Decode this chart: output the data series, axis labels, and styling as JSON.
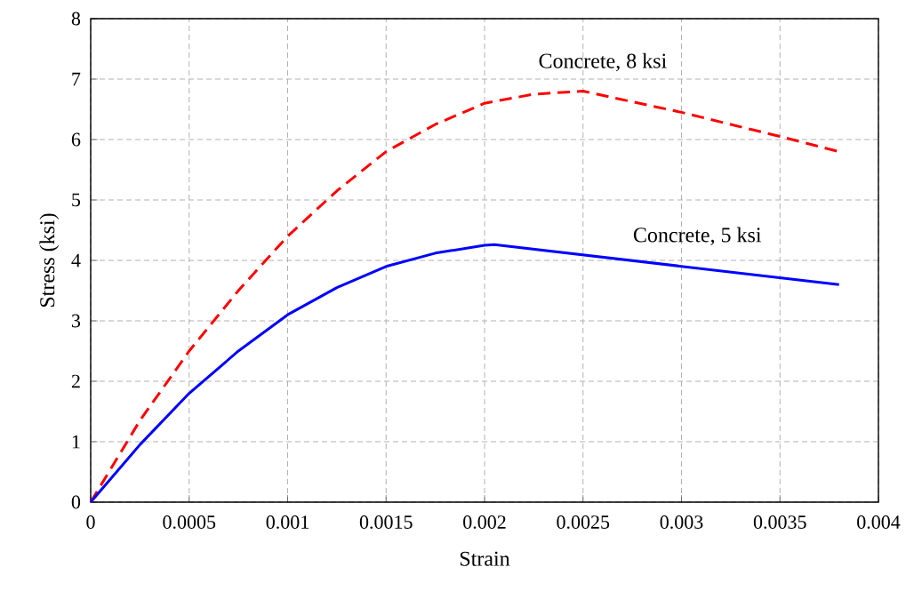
{
  "chart_data": {
    "type": "line",
    "xlabel": "Strain",
    "ylabel": "Stress (ksi)",
    "xlim": [
      0,
      0.004
    ],
    "xticks": [
      0,
      0.0005,
      0.001,
      0.0015,
      0.002,
      0.0025,
      0.003,
      0.0035,
      0.004
    ],
    "ylim": [
      0,
      8
    ],
    "yticks": [
      0,
      1,
      2,
      3,
      4,
      5,
      6,
      7,
      8
    ],
    "grid": true,
    "marker": "none",
    "series": [
      {
        "color": "#ff0000",
        "line_style": "dashed",
        "x": [
          0,
          0.00025,
          0.0005,
          0.00075,
          0.001,
          0.00125,
          0.0015,
          0.00175,
          0.002,
          0.00225,
          0.0025,
          0.003,
          0.0035,
          0.0038
        ],
        "values": [
          0,
          1.35,
          2.5,
          3.5,
          4.4,
          5.15,
          5.8,
          6.25,
          6.6,
          6.75,
          6.8,
          6.45,
          6.05,
          5.8
        ]
      },
      {
        "color": "#0000ff",
        "line_style": "solid",
        "x": [
          0,
          0.00025,
          0.0005,
          0.00075,
          0.001,
          0.00125,
          0.0015,
          0.00175,
          0.002,
          0.00205,
          0.0038
        ],
        "values": [
          0,
          0.95,
          1.8,
          2.5,
          3.1,
          3.55,
          3.9,
          4.12,
          4.25,
          4.26,
          3.6
        ]
      }
    ],
    "annotations": [
      "Concrete, 8 ksi",
      "Concrete, 5 ksi"
    ]
  }
}
